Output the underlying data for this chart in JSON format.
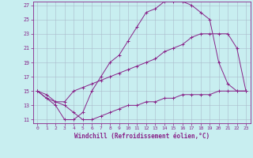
{
  "xlabel": "Windchill (Refroidissement éolien,°C)",
  "xlim": [
    -0.5,
    23.5
  ],
  "ylim": [
    10.5,
    27.5
  ],
  "xticks": [
    0,
    1,
    2,
    3,
    4,
    5,
    6,
    7,
    8,
    9,
    10,
    11,
    12,
    13,
    14,
    15,
    16,
    17,
    18,
    19,
    20,
    21,
    22,
    23
  ],
  "yticks": [
    11,
    13,
    15,
    17,
    19,
    21,
    23,
    25,
    27
  ],
  "line_color": "#882288",
  "background_color": "#C8EEF0",
  "grid_color": "#AABBCC",
  "line1_x": [
    0,
    1,
    2,
    3,
    4,
    5,
    6,
    7,
    8,
    9,
    10,
    11,
    12,
    13,
    14,
    15,
    16,
    17,
    18,
    19,
    20,
    21,
    22,
    23
  ],
  "line1_y": [
    15,
    14,
    13,
    11,
    11,
    12,
    15,
    17,
    19,
    20,
    22,
    24,
    26,
    26.5,
    27.5,
    27.5,
    27.5,
    27,
    26,
    25,
    19,
    16,
    15,
    15
  ],
  "line2_x": [
    0,
    1,
    2,
    3,
    4,
    5,
    6,
    7,
    8,
    9,
    10,
    11,
    12,
    13,
    14,
    15,
    16,
    17,
    18,
    19,
    20,
    21,
    22,
    23
  ],
  "line2_y": [
    15,
    14.5,
    13.5,
    13.5,
    15,
    15.5,
    16,
    16.5,
    17,
    17.5,
    18,
    18.5,
    19,
    19.5,
    20.5,
    21,
    21.5,
    22.5,
    23,
    23,
    23,
    23,
    21,
    15
  ],
  "line3_x": [
    0,
    1,
    2,
    3,
    4,
    5,
    6,
    7,
    8,
    9,
    10,
    11,
    12,
    13,
    14,
    15,
    16,
    17,
    18,
    19,
    20,
    21,
    22,
    23
  ],
  "line3_y": [
    15,
    14,
    13.5,
    13,
    12,
    11,
    11,
    11.5,
    12,
    12.5,
    13,
    13,
    13.5,
    13.5,
    14,
    14,
    14.5,
    14.5,
    14.5,
    14.5,
    15,
    15,
    15,
    15
  ]
}
